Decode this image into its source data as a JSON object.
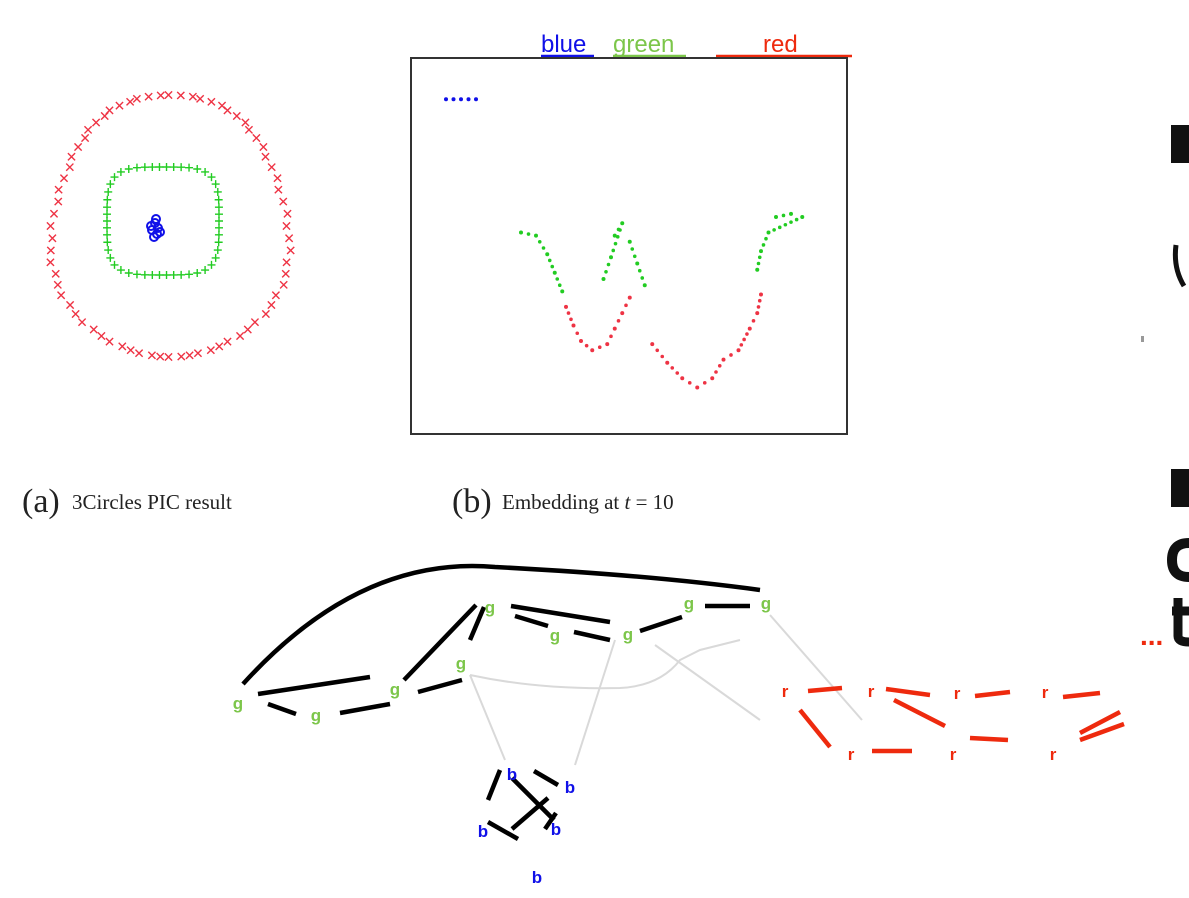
{
  "colors": {
    "blue": "#1010e8",
    "green": "#7cc64a",
    "green_marker": "#22cc22",
    "red": "#ee2a0e",
    "red_marker": "#ee3344",
    "edge": "#000000",
    "thin_edge": "#d9d9d9"
  },
  "panel_a": {
    "letter": "(a)",
    "caption": "3Circles PIC result"
  },
  "panel_b": {
    "letter": "(b)",
    "caption_prefix": "Embedding at ",
    "caption_var": "t",
    "caption_eq": " = 10",
    "legend": {
      "blue": "blue",
      "green": "green",
      "red": "red"
    }
  },
  "chart_data": {
    "type": "scatter",
    "series": [
      {
        "name": "blue",
        "values": [
          [
            0.0,
            0.98
          ],
          [
            0.02,
            0.98
          ],
          [
            0.04,
            0.98
          ],
          [
            0.06,
            0.98
          ],
          [
            0.08,
            0.98
          ]
        ]
      },
      {
        "name": "green",
        "values": [
          [
            0.2,
            0.55
          ],
          [
            0.24,
            0.54
          ],
          [
            0.27,
            0.48
          ],
          [
            0.29,
            0.42
          ],
          [
            0.31,
            0.36
          ],
          [
            0.45,
            0.54
          ],
          [
            0.47,
            0.58
          ],
          [
            0.44,
            0.47
          ],
          [
            0.42,
            0.4
          ],
          [
            0.49,
            0.52
          ],
          [
            0.51,
            0.45
          ],
          [
            0.53,
            0.38
          ],
          [
            0.88,
            0.6
          ],
          [
            0.92,
            0.61
          ],
          [
            0.95,
            0.6
          ],
          [
            0.86,
            0.55
          ],
          [
            0.84,
            0.49
          ],
          [
            0.83,
            0.43
          ]
        ]
      },
      {
        "name": "red",
        "values": [
          [
            0.32,
            0.31
          ],
          [
            0.34,
            0.25
          ],
          [
            0.36,
            0.2
          ],
          [
            0.39,
            0.17
          ],
          [
            0.43,
            0.19
          ],
          [
            0.45,
            0.24
          ],
          [
            0.47,
            0.29
          ],
          [
            0.49,
            0.34
          ],
          [
            0.55,
            0.19
          ],
          [
            0.59,
            0.13
          ],
          [
            0.63,
            0.08
          ],
          [
            0.67,
            0.05
          ],
          [
            0.71,
            0.08
          ],
          [
            0.74,
            0.14
          ],
          [
            0.78,
            0.17
          ],
          [
            0.81,
            0.24
          ],
          [
            0.83,
            0.29
          ],
          [
            0.84,
            0.35
          ]
        ]
      }
    ]
  },
  "graph": {
    "green_label": "g",
    "blue_label": "b",
    "red_label": "r",
    "ellipsis": "..."
  }
}
